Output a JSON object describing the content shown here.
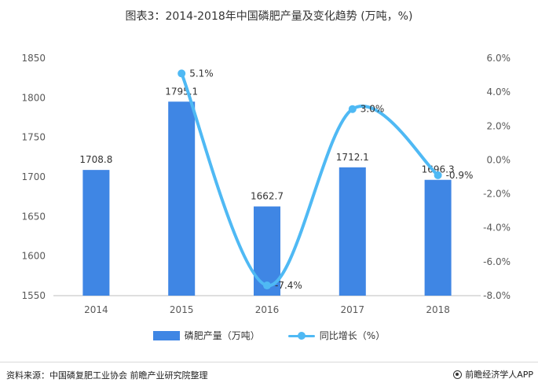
{
  "title": "图表3：2014-2018年中国磷肥产量及变化趋势 (万吨，%)",
  "source": "资料来源：中国磷复肥工业协会 前瞻产业研究院整理",
  "brand": "前瞻经济学人APP",
  "colors": {
    "bar": "#3f86e4",
    "line": "#4fb9f4",
    "axis": "#595959",
    "text": "#333333"
  },
  "chart_data": {
    "type": "bar",
    "categories": [
      "2014",
      "2015",
      "2016",
      "2017",
      "2018"
    ],
    "series": [
      {
        "name": "磷肥产量（万吨）",
        "type": "bar",
        "axis": "left",
        "values": [
          1708.8,
          1795.1,
          1662.7,
          1712.1,
          1696.3
        ],
        "labels": [
          "1708.8",
          "1795.1",
          "1662.7",
          "1712.1",
          "1696.3"
        ]
      },
      {
        "name": "同比增长（%）",
        "type": "line",
        "axis": "right",
        "values": [
          null,
          5.1,
          -7.4,
          3.0,
          -0.9
        ],
        "labels": [
          "",
          "5.1%",
          "-7.4%",
          "3.0%",
          "-0.9%"
        ]
      }
    ],
    "y_left": {
      "min": 1550,
      "max": 1850,
      "ticks": [
        "1850",
        "1800",
        "1750",
        "1700",
        "1650",
        "1600",
        "1550"
      ]
    },
    "y_right": {
      "min": -8,
      "max": 6,
      "ticks": [
        "6.0%",
        "4.0%",
        "2.0%",
        "0.0%",
        "-2.0%",
        "-4.0%",
        "-6.0%",
        "-8.0%"
      ]
    },
    "legend_position": "bottom",
    "grid": false
  }
}
